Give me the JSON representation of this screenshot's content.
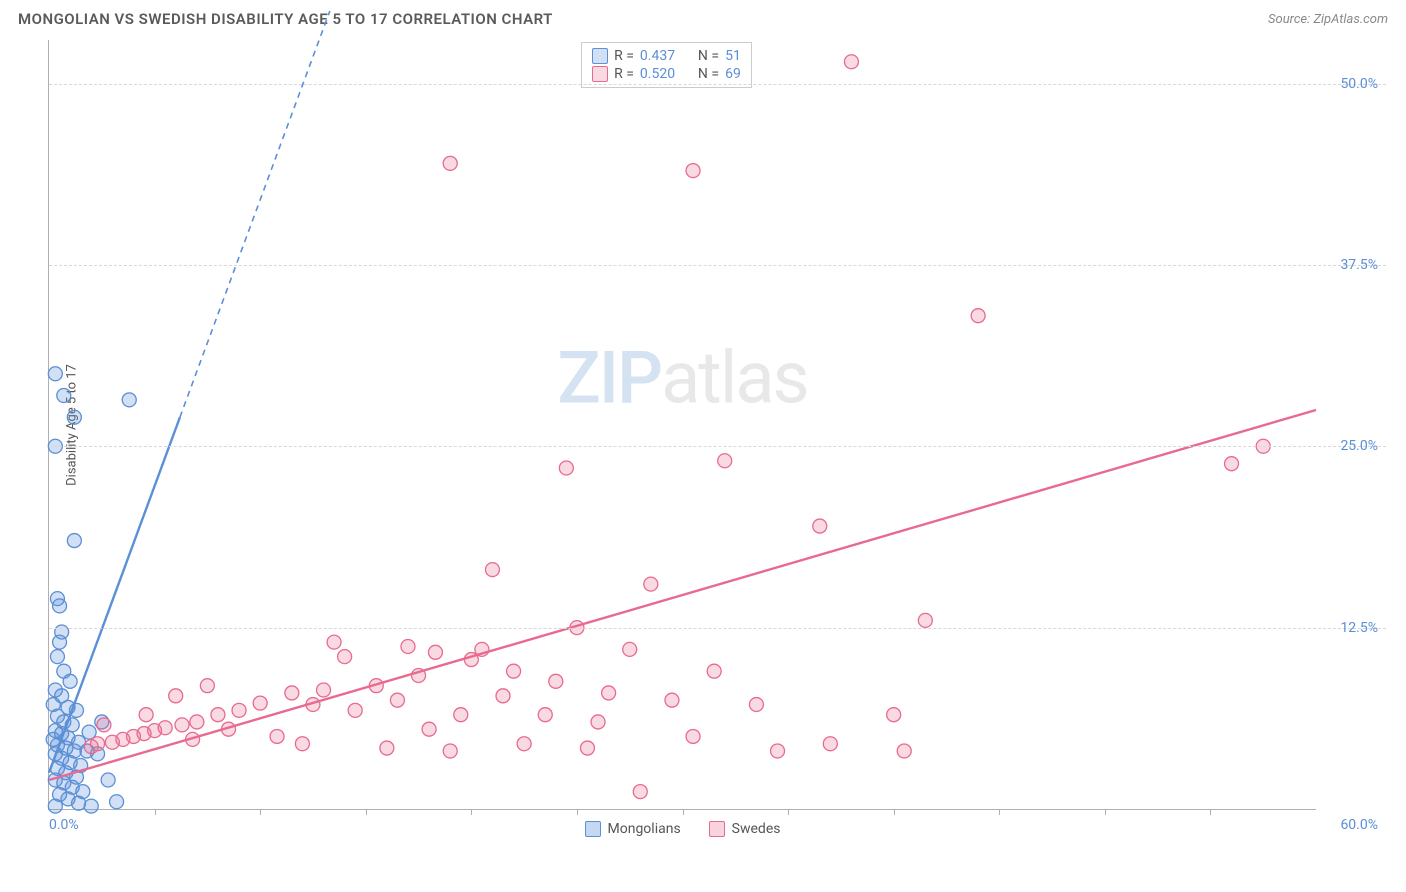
{
  "header": {
    "title": "MONGOLIAN VS SWEDISH DISABILITY AGE 5 TO 17 CORRELATION CHART",
    "source_prefix": "Source: ",
    "source": "ZipAtlas.com"
  },
  "chart": {
    "type": "scatter",
    "y_axis_label": "Disability Age 5 to 17",
    "background_color": "#ffffff",
    "grid_color": "#d8d8d8",
    "axis_color": "#b0b0b0",
    "tick_label_color": "#5b8fd6",
    "xlim": [
      0,
      60
    ],
    "ylim": [
      0,
      53
    ],
    "x_tick_labels": {
      "0": "0.0%",
      "60": "60.0%"
    },
    "x_minor_ticks": [
      5,
      10,
      15,
      20,
      25,
      30,
      35,
      40,
      45,
      50,
      55
    ],
    "y_ticks": [
      12.5,
      25.0,
      37.5,
      50.0
    ],
    "y_tick_labels": [
      "12.5%",
      "25.0%",
      "37.5%",
      "50.0%"
    ],
    "watermark": {
      "zip": "ZIP",
      "atlas": "atlas"
    },
    "series": [
      {
        "name": "Mongolians",
        "color": "#5b8fd6",
        "fill": "rgba(91,143,214,0.28)",
        "stroke": "#5b8fd6",
        "marker_radius": 7,
        "R": "0.437",
        "N": "51",
        "trend": {
          "x1": 0,
          "y1": 2.5,
          "x2": 6.2,
          "y2": 27,
          "dash_x2": 13.3,
          "dash_y2": 55
        },
        "points": [
          [
            0.3,
            30
          ],
          [
            0.7,
            28.5
          ],
          [
            1.2,
            27
          ],
          [
            3.8,
            28.2
          ],
          [
            0.3,
            25
          ],
          [
            1.2,
            18.5
          ],
          [
            0.4,
            14.5
          ],
          [
            0.5,
            14
          ],
          [
            0.6,
            12.2
          ],
          [
            0.4,
            10.5
          ],
          [
            0.7,
            9.5
          ],
          [
            1.0,
            8.8
          ],
          [
            0.3,
            8.2
          ],
          [
            0.6,
            7.8
          ],
          [
            0.2,
            7.2
          ],
          [
            0.9,
            7.0
          ],
          [
            1.3,
            6.8
          ],
          [
            0.4,
            6.4
          ],
          [
            0.7,
            6.0
          ],
          [
            1.1,
            5.8
          ],
          [
            0.3,
            5.4
          ],
          [
            0.6,
            5.2
          ],
          [
            0.9,
            4.9
          ],
          [
            1.4,
            4.6
          ],
          [
            0.4,
            4.4
          ],
          [
            0.8,
            4.2
          ],
          [
            1.2,
            4.0
          ],
          [
            0.3,
            3.8
          ],
          [
            0.6,
            3.5
          ],
          [
            1.0,
            3.2
          ],
          [
            1.5,
            3.0
          ],
          [
            0.4,
            2.8
          ],
          [
            0.8,
            2.5
          ],
          [
            1.3,
            2.2
          ],
          [
            0.3,
            2.0
          ],
          [
            0.7,
            1.8
          ],
          [
            1.1,
            1.5
          ],
          [
            1.6,
            1.2
          ],
          [
            0.5,
            1.0
          ],
          [
            0.9,
            0.7
          ],
          [
            1.4,
            0.4
          ],
          [
            2.0,
            0.2
          ],
          [
            0.3,
            0.2
          ],
          [
            2.3,
            3.8
          ],
          [
            2.8,
            2.0
          ],
          [
            3.2,
            0.5
          ],
          [
            0.2,
            4.8
          ],
          [
            1.9,
            5.3
          ],
          [
            2.5,
            6.0
          ],
          [
            0.5,
            11.5
          ],
          [
            1.8,
            4.0
          ]
        ]
      },
      {
        "name": "Swedes",
        "color": "#e86a8f",
        "fill": "rgba(232,106,143,0.25)",
        "stroke": "#e86a8f",
        "marker_radius": 7,
        "R": "0.520",
        "N": "69",
        "trend": {
          "x1": 0,
          "y1": 2.0,
          "x2": 60,
          "y2": 27.5
        },
        "points": [
          [
            38,
            51.5
          ],
          [
            19,
            44.5
          ],
          [
            30.5,
            44
          ],
          [
            44,
            34
          ],
          [
            57.5,
            25
          ],
          [
            56,
            23.8
          ],
          [
            32,
            24
          ],
          [
            24.5,
            23.5
          ],
          [
            36.5,
            19.5
          ],
          [
            41.5,
            13
          ],
          [
            21,
            16.5
          ],
          [
            28.5,
            15.5
          ],
          [
            25,
            12.5
          ],
          [
            20.5,
            11
          ],
          [
            20,
            10.3
          ],
          [
            18.3,
            10.8
          ],
          [
            14,
            10.5
          ],
          [
            17.5,
            9.2
          ],
          [
            22,
            9.5
          ],
          [
            24,
            8.8
          ],
          [
            26.5,
            8.0
          ],
          [
            29.5,
            7.5
          ],
          [
            33.5,
            7.2
          ],
          [
            15.5,
            8.5
          ],
          [
            13,
            8.2
          ],
          [
            11.5,
            8.0
          ],
          [
            16.5,
            7.5
          ],
          [
            14.5,
            6.8
          ],
          [
            12.5,
            7.2
          ],
          [
            10,
            7.3
          ],
          [
            9,
            6.8
          ],
          [
            8,
            6.5
          ],
          [
            7,
            6.0
          ],
          [
            6.3,
            5.8
          ],
          [
            5.5,
            5.6
          ],
          [
            5,
            5.4
          ],
          [
            4.5,
            5.2
          ],
          [
            4,
            5.0
          ],
          [
            3.5,
            4.8
          ],
          [
            3,
            4.6
          ],
          [
            2.6,
            5.8
          ],
          [
            2.3,
            4.5
          ],
          [
            2.0,
            4.3
          ],
          [
            6.8,
            4.8
          ],
          [
            8.5,
            5.5
          ],
          [
            10.8,
            5.0
          ],
          [
            12,
            4.5
          ],
          [
            16,
            4.2
          ],
          [
            18,
            5.5
          ],
          [
            19.5,
            6.5
          ],
          [
            22.5,
            4.5
          ],
          [
            25.5,
            4.2
          ],
          [
            28,
            1.2
          ],
          [
            30.5,
            5.0
          ],
          [
            34.5,
            4.0
          ],
          [
            37,
            4.5
          ],
          [
            40.5,
            4.0
          ],
          [
            40,
            6.5
          ],
          [
            26,
            6.0
          ],
          [
            27.5,
            11
          ],
          [
            31.5,
            9.5
          ],
          [
            13.5,
            11.5
          ],
          [
            7.5,
            8.5
          ],
          [
            4.6,
            6.5
          ],
          [
            6,
            7.8
          ],
          [
            23.5,
            6.5
          ],
          [
            21.5,
            7.8
          ],
          [
            19,
            4.0
          ],
          [
            17,
            11.2
          ]
        ]
      }
    ],
    "legend_top": {
      "R_label": "R =",
      "N_label": "N ="
    },
    "legend_bottom": [
      {
        "label": "Mongolians",
        "fill": "rgba(91,143,214,0.35)",
        "stroke": "#5b8fd6"
      },
      {
        "label": "Swedes",
        "fill": "rgba(232,106,143,0.30)",
        "stroke": "#e86a8f"
      }
    ]
  }
}
